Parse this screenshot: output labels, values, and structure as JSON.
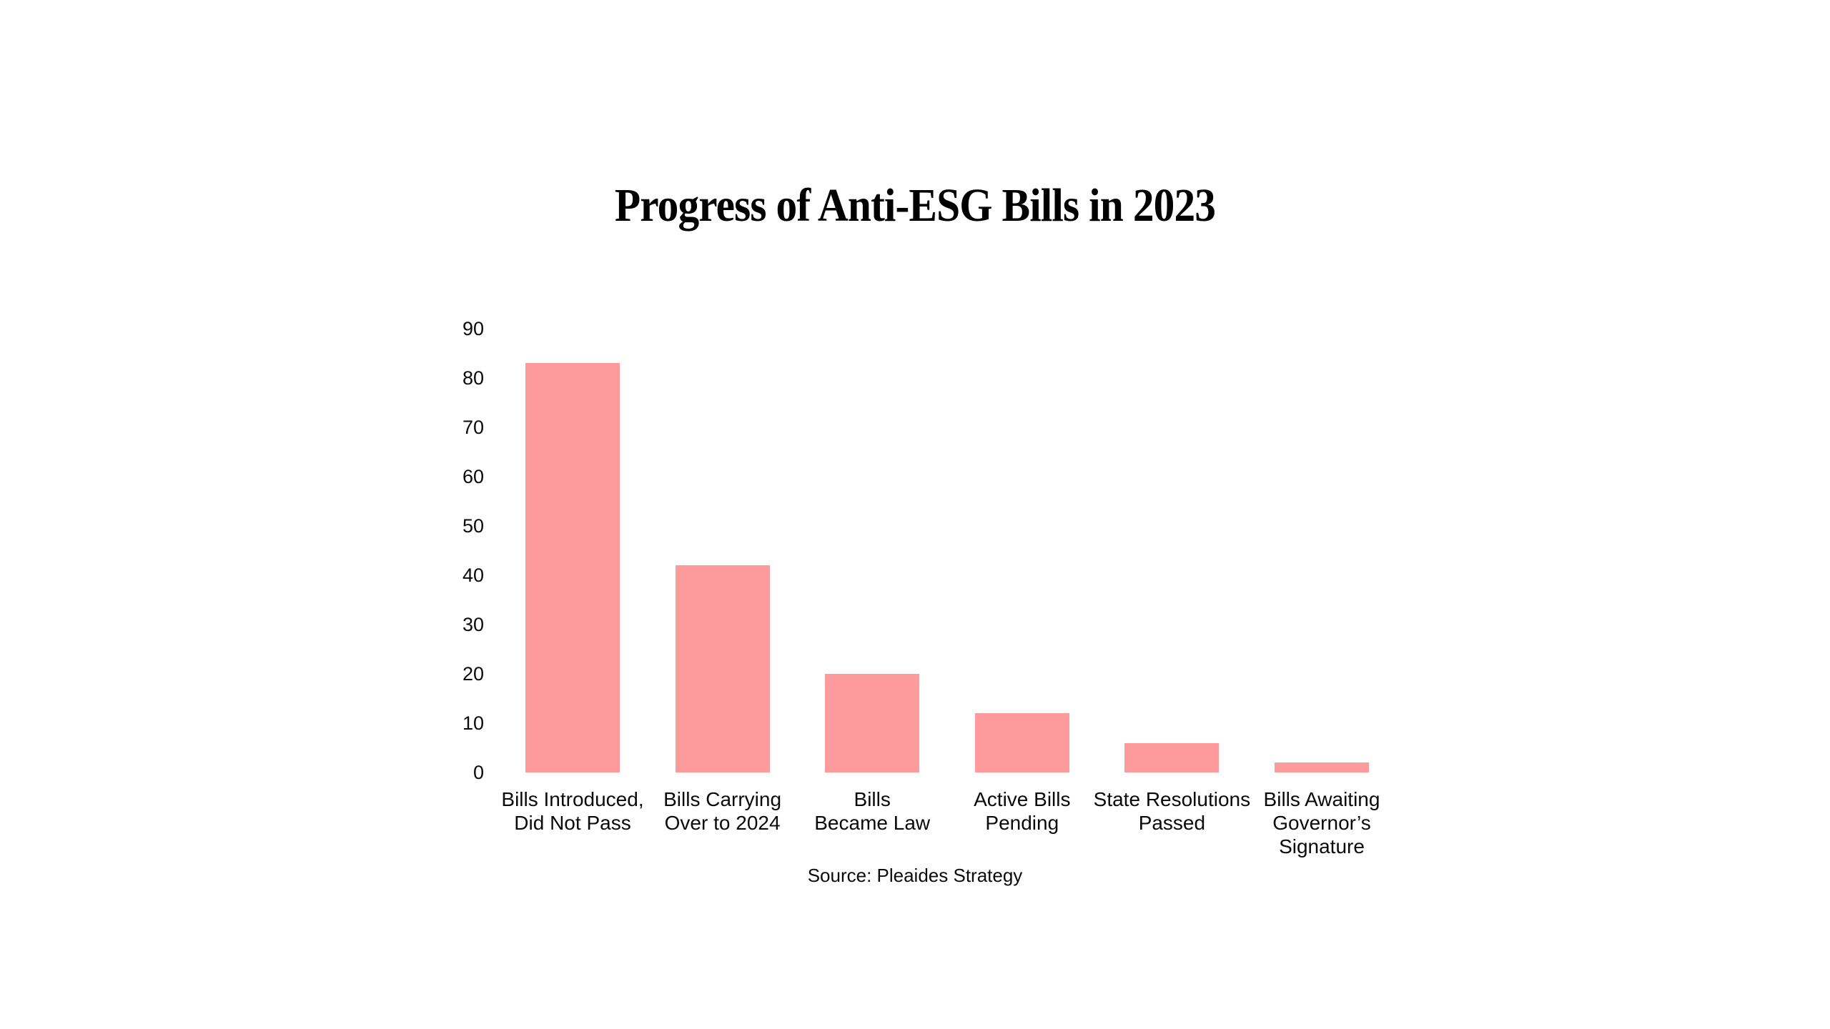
{
  "page": {
    "background_color": "#ffffff",
    "text_color": "#0a0a0a",
    "title_color": "#000000"
  },
  "chart_data": {
    "type": "bar",
    "title": "Progress of Anti-ESG Bills in 2023",
    "categories": [
      "Bills Introduced,\nDid Not Pass",
      "Bills Carrying\nOver to 2024",
      "Bills\nBecame Law",
      "Active Bills\nPending",
      "State Resolutions\nPassed",
      "Bills Awaiting\nGovernor’s\nSignature"
    ],
    "values": [
      83,
      42,
      20,
      12,
      6,
      2
    ],
    "bar_color": "#FC9A9C",
    "xlabel": "",
    "ylabel": "",
    "ylim": [
      0,
      90
    ],
    "yticks": [
      90,
      80,
      70,
      60,
      50,
      40,
      30,
      20,
      10,
      0
    ],
    "grid": false,
    "legend": false,
    "axis_lines": false,
    "source": "Source: Pleaides Strategy"
  }
}
